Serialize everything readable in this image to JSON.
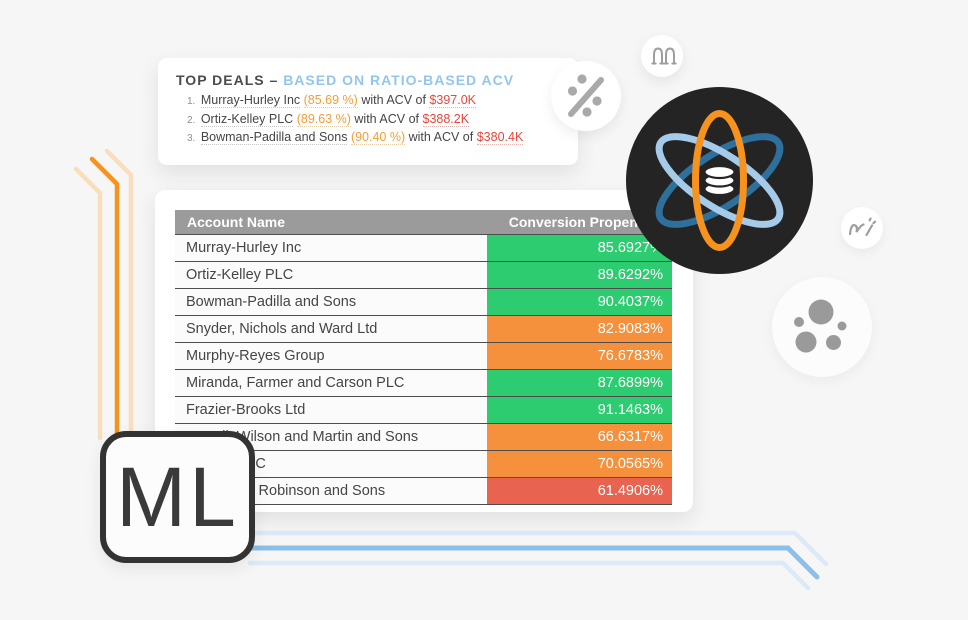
{
  "colors": {
    "background": "#F6F6F7",
    "status_green": "#2ECC71",
    "status_orange": "#F5913D",
    "status_red": "#E86450",
    "accent_orange_line": "#F6921E",
    "pale_orange_line": "#F9DEBC",
    "accent_blue_line": "#8BBFE7",
    "pale_blue_line": "#DCE9F6",
    "title_blue": "#93C6EC",
    "deal_pct_orange": "#F59D33",
    "deal_acv_red": "#E5473B",
    "table_header_gray": "#9B9B9B",
    "logo_circle_dark": "#242424",
    "logo_orbit_orange": "#F6921E",
    "logo_orbit_light_blue": "#A5CBE9",
    "logo_orbit_dark_blue": "#2F6F9B"
  },
  "icons": {
    "percent": "percent-icon",
    "double_arch": "double-arch-icon",
    "scribble": "scribble-icon",
    "cluster": "cluster-dots-icon",
    "logo": "atom-database-logo",
    "database": "database-icon"
  },
  "top_deals_card": {
    "title_primary": "TOP DEALS –",
    "title_secondary": "BASED ON RATIO-BASED ACV",
    "items": [
      {
        "rank": "1.",
        "name": "Murray-Hurley Inc",
        "pct": "(85.69 %)",
        "connector": "with ACV of",
        "acv": "$397.0K"
      },
      {
        "rank": "2.",
        "name": "Ortiz-Kelley PLC",
        "pct": "(89.63 %)",
        "connector": "with ACV of",
        "acv": "$388.2K"
      },
      {
        "rank": "3.",
        "name": "Bowman-Padilla and Sons",
        "pct": "(90.40 %)",
        "connector": "with ACV of",
        "acv": "$380.4K"
      }
    ]
  },
  "table": {
    "columns": [
      "Account Name",
      "Conversion Propensity"
    ],
    "rows": [
      {
        "name": "Murray-Hurley Inc",
        "value": "85.6927%",
        "level": "green"
      },
      {
        "name": "Ortiz-Kelley PLC",
        "value": "89.6292%",
        "level": "green"
      },
      {
        "name": "Bowman-Padilla and Sons",
        "value": "90.4037%",
        "level": "green"
      },
      {
        "name": "Snyder, Nichols and Ward Ltd",
        "value": "82.9083%",
        "level": "orange"
      },
      {
        "name": "Murphy-Reyes Group",
        "value": "76.6783%",
        "level": "orange"
      },
      {
        "name": "Miranda, Farmer and Carson PLC",
        "value": "87.6899%",
        "level": "green"
      },
      {
        "name": "Frazier-Brooks Ltd",
        "value": "91.1463%",
        "level": "green"
      },
      {
        "name": "Carroll, Wilson and Martin and Sons",
        "value": "66.6317%",
        "level": "orange"
      },
      {
        "name": "Monroe LLC",
        "value": "70.0565%",
        "level": "orange"
      },
      {
        "name": "Carter and Robinson and Sons",
        "value": "61.4906%",
        "level": "red"
      }
    ]
  },
  "ml_badge": {
    "label": "ML"
  }
}
